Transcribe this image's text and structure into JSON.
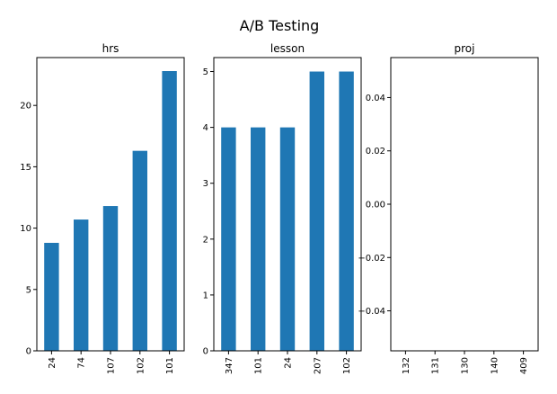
{
  "title": "A/B Testing",
  "bar_color": "#1f77b4",
  "chart_data": [
    {
      "type": "bar",
      "title": "hrs",
      "categories": [
        "24",
        "74",
        "107",
        "102",
        "101"
      ],
      "values": [
        8.8,
        10.7,
        11.8,
        16.3,
        22.8
      ],
      "ylim": [
        0,
        23.9
      ],
      "yticks": [
        0,
        5,
        10,
        15,
        20
      ],
      "ytick_labels": [
        "0",
        "5",
        "10",
        "15",
        "20"
      ],
      "grid": false,
      "legend": "none"
    },
    {
      "type": "bar",
      "title": "lesson",
      "categories": [
        "347",
        "101",
        "24",
        "207",
        "102"
      ],
      "values": [
        4,
        4,
        4,
        5,
        5
      ],
      "ylim": [
        0,
        5.25
      ],
      "yticks": [
        0,
        1,
        2,
        3,
        4,
        5
      ],
      "ytick_labels": [
        "0",
        "1",
        "2",
        "3",
        "4",
        "5"
      ],
      "grid": false,
      "legend": "none"
    },
    {
      "type": "bar",
      "title": "proj",
      "categories": [
        "132",
        "131",
        "130",
        "140",
        "409"
      ],
      "values": [
        0,
        0,
        0,
        0,
        0
      ],
      "ylim": [
        -0.055,
        0.055
      ],
      "yticks": [
        -0.04,
        -0.02,
        0.0,
        0.02,
        0.04
      ],
      "ytick_labels": [
        "−0.04",
        "−0.02",
        "0.00",
        "0.02",
        "0.04"
      ],
      "grid": false,
      "legend": "none"
    }
  ]
}
